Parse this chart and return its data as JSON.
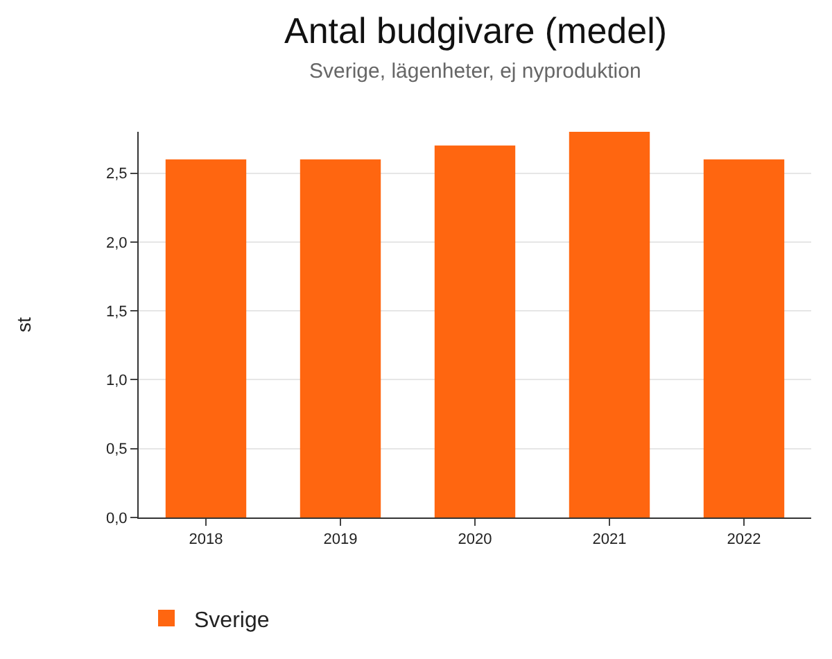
{
  "chart_data": {
    "type": "bar",
    "title": "Antal budgivare (medel)",
    "subtitle": "Sverige, lägenheter, ej nyproduktion",
    "ylabel": "st",
    "categories": [
      "2018",
      "2019",
      "2020",
      "2021",
      "2022"
    ],
    "series": [
      {
        "name": "Sverige",
        "color": "#ff6610",
        "values": [
          2.6,
          2.6,
          2.7,
          2.8,
          2.6
        ]
      }
    ],
    "ylim": [
      0,
      2.8
    ],
    "yticks": [
      {
        "value": 0,
        "label": "0,0"
      },
      {
        "value": 0.5,
        "label": "0,5"
      },
      {
        "value": 1,
        "label": "1,0"
      },
      {
        "value": 1.5,
        "label": "1,5"
      },
      {
        "value": 2,
        "label": "2,0"
      },
      {
        "value": 2.5,
        "label": "2,5"
      }
    ],
    "grid": "y",
    "legend": "bottom left"
  }
}
